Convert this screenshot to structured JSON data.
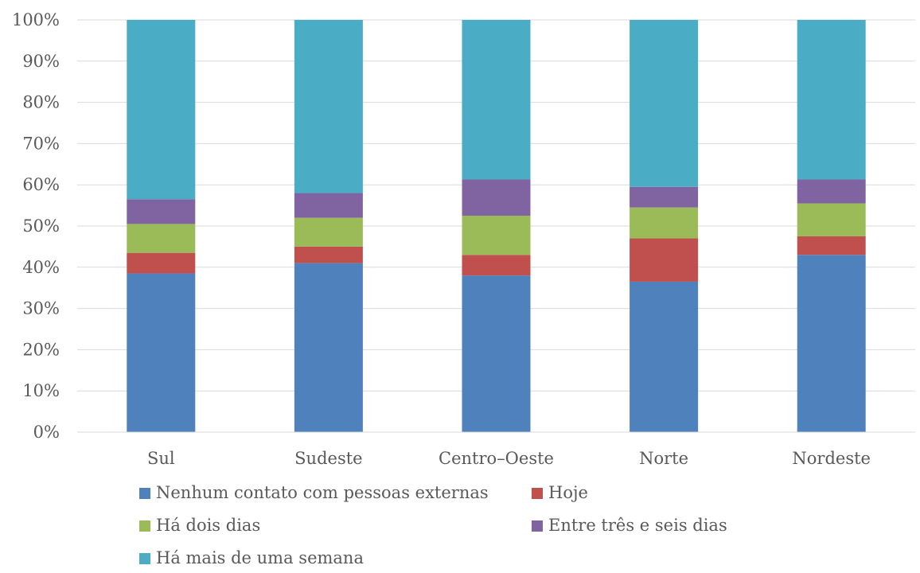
{
  "chart_data": {
    "type": "bar",
    "stacked": true,
    "percent_stacked": true,
    "categories": [
      "Sul",
      "Sudeste",
      "Centro–Oeste",
      "Norte",
      "Nordeste"
    ],
    "series": [
      {
        "name": "Nenhum contato com pessoas externas",
        "color": "#4f81bd",
        "values": [
          38.5,
          41,
          38,
          36.5,
          43
        ]
      },
      {
        "name": "Hoje",
        "color": "#c0504d",
        "values": [
          5,
          4,
          5,
          10.5,
          4.5
        ]
      },
      {
        "name": "Há dois dias",
        "color": "#9bbb59",
        "values": [
          7,
          7,
          9.5,
          7.5,
          8
        ]
      },
      {
        "name": "Entre três e seis dias",
        "color": "#8064a2",
        "values": [
          6,
          6,
          8.8,
          5,
          5.8
        ]
      },
      {
        "name": "Há mais de uma semana",
        "color": "#4bacc6",
        "values": [
          43.5,
          42,
          38.7,
          40.5,
          38.7
        ]
      }
    ],
    "yticks": [
      "0%",
      "10%",
      "20%",
      "30%",
      "40%",
      "50%",
      "60%",
      "70%",
      "80%",
      "90%",
      "100%"
    ],
    "ylim": [
      0,
      100
    ],
    "title": "",
    "xlabel": "",
    "ylabel": "",
    "grid": true,
    "legend_position": "bottom"
  }
}
